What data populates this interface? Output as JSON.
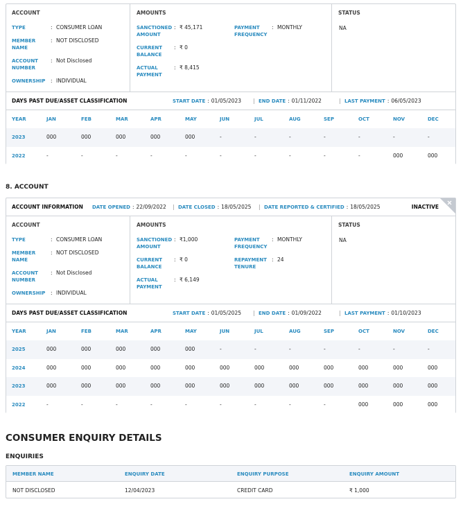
{
  "separator": ":",
  "divider": "|",
  "accounts": [
    {
      "columns": {
        "account": "ACCOUNT",
        "amounts": "AMOUNTS",
        "status": "STATUS"
      },
      "account_fields": [
        {
          "label": "TYPE",
          "value": "CONSUMER LOAN"
        },
        {
          "label": "MEMBER NAME",
          "value": "NOT DISCLOSED"
        },
        {
          "label": "ACCOUNT NUMBER",
          "value": "Not Disclosed"
        },
        {
          "label": "OWNERSHIP",
          "value": "INDIVIDUAL"
        }
      ],
      "amount_fields": [
        [
          {
            "label": "SANCTIONED AMOUNT",
            "value": "₹ 45,171"
          },
          {
            "label": "CURRENT BALANCE",
            "value": "₹ 0"
          },
          {
            "label": "ACTUAL PAYMENT",
            "value": "₹ 8,415"
          }
        ],
        [
          {
            "label": "PAYMENT FREQUENCY",
            "value": "MONTHLY"
          }
        ]
      ],
      "status": "NA",
      "dpd": {
        "title": "DAYS PAST DUE/ASSET CLASSIFICATION",
        "dates": [
          {
            "label": "START DATE",
            "value": "01/05/2023"
          },
          {
            "label": "END DATE",
            "value": "01/11/2022"
          },
          {
            "label": "LAST PAYMENT",
            "value": "06/05/2023"
          }
        ]
      },
      "table": {
        "header": [
          "YEAR",
          "JAN",
          "FEB",
          "MAR",
          "APR",
          "MAY",
          "JUN",
          "JUL",
          "AUG",
          "SEP",
          "OCT",
          "NOV",
          "DEC"
        ],
        "rows": [
          [
            "2023",
            "000",
            "000",
            "000",
            "000",
            "000",
            "-",
            "-",
            "-",
            "-",
            "-",
            "-",
            "-"
          ],
          [
            "2022",
            "-",
            "-",
            "-",
            "-",
            "-",
            "-",
            "-",
            "-",
            "-",
            "-",
            "000",
            "000"
          ]
        ]
      }
    },
    {
      "heading": "8. ACCOUNT",
      "info": {
        "title": "ACCOUNT INFORMATION",
        "dates": [
          {
            "label": "DATE OPENED",
            "value": "22/09/2022"
          },
          {
            "label": "DATE CLOSED",
            "value": "18/05/2025"
          },
          {
            "label": "DATE REPORTED & CERTIFIED",
            "value": "18/05/2025"
          }
        ],
        "state": "INACTIVE"
      },
      "columns": {
        "account": "ACCOUNT",
        "amounts": "AMOUNTS",
        "status": "STATUS"
      },
      "account_fields": [
        {
          "label": "TYPE",
          "value": "CONSUMER LOAN"
        },
        {
          "label": "MEMBER NAME",
          "value": "NOT DISCLOSED"
        },
        {
          "label": "ACCOUNT NUMBER",
          "value": "Not Disclosed"
        },
        {
          "label": "OWNERSHIP",
          "value": "INDIVIDUAL"
        }
      ],
      "amount_fields": [
        [
          {
            "label": "SANCTIONED AMOUNT",
            "value": "₹1,000"
          },
          {
            "label": "CURRENT BALANCE",
            "value": "₹ 0"
          },
          {
            "label": "ACTUAL PAYMENT",
            "value": "₹ 6,149"
          }
        ],
        [
          {
            "label": "PAYMENT FREQUENCY",
            "value": "MONTHLY"
          },
          {
            "label": "REPAYMENT TENURE",
            "value": "24"
          }
        ]
      ],
      "status": "NA",
      "dpd": {
        "title": "DAYS PAST DUE/ASSET CLASSIFICATION",
        "dates": [
          {
            "label": "START DATE",
            "value": "01/05/2025"
          },
          {
            "label": "END DATE",
            "value": "01/09/2022"
          },
          {
            "label": "LAST PAYMENT",
            "value": "01/10/2023"
          }
        ]
      },
      "table": {
        "header": [
          "YEAR",
          "JAN",
          "FEB",
          "MAR",
          "APR",
          "MAY",
          "JUN",
          "JUL",
          "AUG",
          "SEP",
          "OCT",
          "NOV",
          "DEC"
        ],
        "rows": [
          [
            "2025",
            "000",
            "000",
            "000",
            "000",
            "000",
            "-",
            "-",
            "-",
            "-",
            "-",
            "-",
            "-"
          ],
          [
            "2024",
            "000",
            "000",
            "000",
            "000",
            "000",
            "000",
            "000",
            "000",
            "000",
            "000",
            "000",
            "000"
          ],
          [
            "2023",
            "000",
            "000",
            "000",
            "000",
            "000",
            "000",
            "000",
            "000",
            "000",
            "000",
            "000",
            "000"
          ],
          [
            "2022",
            "-",
            "-",
            "-",
            "-",
            "-",
            "-",
            "-",
            "-",
            "-",
            "000",
            "000",
            "000"
          ]
        ]
      }
    }
  ],
  "enquiry": {
    "title": "CONSUMER ENQUIRY DETAILS",
    "subtitle": "ENQUIRIES",
    "header": [
      "MEMBER NAME",
      "ENQUIRY DATE",
      "ENQUIRY PURPOSE",
      "ENQUIRY AMOUNT"
    ],
    "rows": [
      [
        "NOT DISCLOSED",
        "12/04/2023",
        "CREDIT CARD",
        "₹ 1,000"
      ]
    ]
  }
}
